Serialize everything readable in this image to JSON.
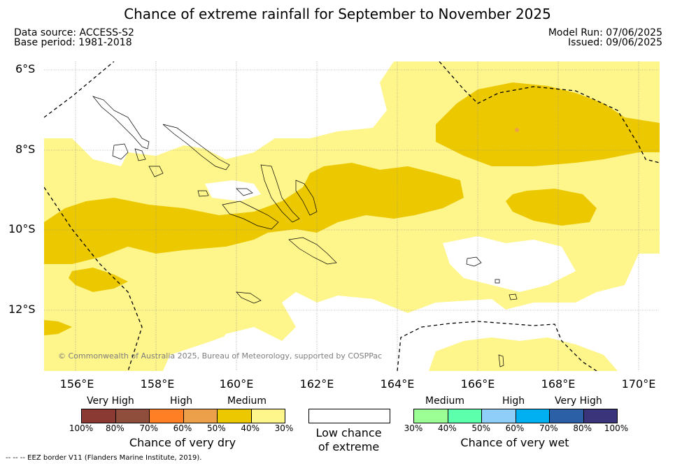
{
  "title": "Chance of extreme rainfall for September to November 2025",
  "meta": {
    "source": "Data source: ACCESS-S2",
    "base": "Base period: 1981-2018",
    "run": "Model Run: 07/06/2025",
    "issued": "Issued: 09/06/2025"
  },
  "lat_labels": [
    "6°S",
    "8°S",
    "10°S",
    "12°S"
  ],
  "lon_labels": [
    "156°E",
    "158°E",
    "160°E",
    "162°E",
    "164°E",
    "166°E",
    "168°E",
    "170°E"
  ],
  "copyright": "© Commonwealth of Australia 2025, Bureau of Meteorology, supported by COSPPac",
  "legend": {
    "dry": {
      "levels": [
        "Very High",
        "High",
        "Medium"
      ],
      "ticks": [
        "100%",
        "80%",
        "70%",
        "60%",
        "50%",
        "40%",
        "30%"
      ],
      "title": "Chance of very dry",
      "colors": [
        "#8b3a33",
        "#8f4d3c",
        "#ff7f24",
        "#eca04a",
        "#ecc800",
        "#fef58b"
      ]
    },
    "low": {
      "line1": "Low chance",
      "line2": "of extreme"
    },
    "wet": {
      "levels": [
        "Medium",
        "High",
        "Very High"
      ],
      "ticks": [
        "30%",
        "40%",
        "50%",
        "60%",
        "70%",
        "80%",
        "100%"
      ],
      "title": "Chance of very wet",
      "colors": [
        "#9cff95",
        "#5cffac",
        "#8ecef8",
        "#00b0f0",
        "#2c60a6",
        "#3a357a"
      ]
    }
  },
  "map_colors": {
    "dry_medium": "#ecc800",
    "dry_low": "#fef58b",
    "land": "#000000",
    "eez": "#000000"
  },
  "eez_note": "-- -- -- EEZ border V11 (Flanders Marine Institute, 2019)."
}
